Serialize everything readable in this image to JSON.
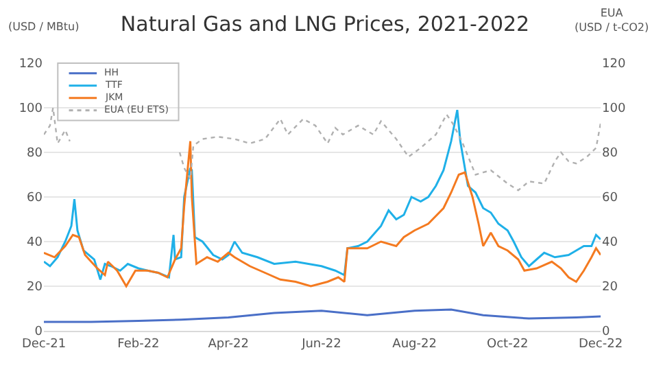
{
  "chart_data": {
    "type": "line",
    "title": "Natural Gas and LNG Prices, 2021-2022",
    "ylabel": "(USD / MBtu)",
    "y2label": "EUA\n(USD / t-CO2)",
    "xlim": [
      "2021-12-01",
      "2022-12-01"
    ],
    "xticks": [
      {
        "value": "2021-12-01",
        "label": "Dec-21"
      },
      {
        "value": "2022-02-01",
        "label": "Feb-22"
      },
      {
        "value": "2022-04-01",
        "label": "Apr-22"
      },
      {
        "value": "2022-06-01",
        "label": "Jun-22"
      },
      {
        "value": "2022-08-01",
        "label": "Aug-22"
      },
      {
        "value": "2022-10-01",
        "label": "Oct-22"
      },
      {
        "value": "2022-12-01",
        "label": "Dec-22"
      }
    ],
    "ylim": [
      0,
      120
    ],
    "yticks": [
      0,
      20,
      40,
      60,
      80,
      100,
      120
    ],
    "y2lim": [
      0,
      120
    ],
    "y2ticks": [
      0,
      20,
      40,
      60,
      80,
      100,
      120
    ],
    "grid": "y",
    "legend": "top left",
    "marker": "none",
    "series": [
      {
        "name": "HH",
        "color": "#4a6fc7",
        "line_style": "solid",
        "x": [
          "2021-12-01",
          "2022-01-01",
          "2022-02-01",
          "2022-03-01",
          "2022-04-01",
          "2022-05-01",
          "2022-06-01",
          "2022-07-01",
          "2022-08-01",
          "2022-08-25",
          "2022-09-15",
          "2022-10-15",
          "2022-11-15",
          "2022-12-01"
        ],
        "values": [
          4,
          4,
          4.5,
          5,
          6,
          8,
          9,
          7,
          9,
          9.5,
          7,
          5.5,
          6,
          6.5
        ]
      },
      {
        "name": "TTF",
        "color": "#1fb0e8",
        "line_style": "solid",
        "x": [
          "2021-12-01",
          "2021-12-05",
          "2021-12-10",
          "2021-12-15",
          "2021-12-19",
          "2021-12-21",
          "2021-12-23",
          "2021-12-27",
          "2022-01-03",
          "2022-01-07",
          "2022-01-10",
          "2022-01-14",
          "2022-01-20",
          "2022-01-25",
          "2022-02-01",
          "2022-02-07",
          "2022-02-14",
          "2022-02-21",
          "2022-02-24",
          "2022-02-25",
          "2022-03-01",
          "2022-03-03",
          "2022-03-07",
          "2022-03-08",
          "2022-03-10",
          "2022-03-15",
          "2022-03-22",
          "2022-03-28",
          "2022-04-01",
          "2022-04-05",
          "2022-04-10",
          "2022-04-20",
          "2022-05-01",
          "2022-05-15",
          "2022-06-01",
          "2022-06-10",
          "2022-06-16",
          "2022-06-18",
          "2022-06-25",
          "2022-07-01",
          "2022-07-10",
          "2022-07-15",
          "2022-07-20",
          "2022-07-25",
          "2022-07-30",
          "2022-08-05",
          "2022-08-10",
          "2022-08-15",
          "2022-08-20",
          "2022-08-25",
          "2022-08-29",
          "2022-08-31",
          "2022-09-05",
          "2022-09-10",
          "2022-09-15",
          "2022-09-20",
          "2022-09-25",
          "2022-10-01",
          "2022-10-05",
          "2022-10-10",
          "2022-10-15",
          "2022-10-20",
          "2022-10-25",
          "2022-11-01",
          "2022-11-10",
          "2022-11-15",
          "2022-11-20",
          "2022-11-25",
          "2022-11-28",
          "2022-12-01"
        ],
        "values": [
          31,
          29,
          33,
          40,
          47,
          59,
          45,
          36,
          32,
          23,
          30,
          29,
          27,
          30,
          28,
          27,
          26,
          24,
          43,
          32,
          33,
          60,
          73,
          72,
          42,
          40,
          34,
          32,
          34,
          40,
          35,
          33,
          30,
          31,
          29,
          27,
          25,
          37,
          38,
          40,
          47,
          54,
          50,
          52,
          60,
          58,
          60,
          65,
          72,
          85,
          99,
          85,
          65,
          62,
          55,
          53,
          48,
          45,
          40,
          33,
          29,
          32,
          35,
          33,
          34,
          36,
          38,
          38,
          43,
          41
        ]
      },
      {
        "name": "JKM",
        "color": "#f47a20",
        "line_style": "solid",
        "x": [
          "2021-12-01",
          "2021-12-08",
          "2021-12-15",
          "2021-12-20",
          "2021-12-24",
          "2021-12-28",
          "2022-01-05",
          "2022-01-10",
          "2022-01-12",
          "2022-01-18",
          "2022-01-24",
          "2022-01-30",
          "2022-02-07",
          "2022-02-14",
          "2022-02-20",
          "2022-02-25",
          "2022-03-01",
          "2022-03-03",
          "2022-03-07",
          "2022-03-08",
          "2022-03-11",
          "2022-03-18",
          "2022-03-25",
          "2022-04-01",
          "2022-04-05",
          "2022-04-15",
          "2022-04-25",
          "2022-05-05",
          "2022-05-15",
          "2022-05-25",
          "2022-06-05",
          "2022-06-12",
          "2022-06-16",
          "2022-06-18",
          "2022-07-01",
          "2022-07-10",
          "2022-07-20",
          "2022-07-25",
          "2022-08-01",
          "2022-08-10",
          "2022-08-20",
          "2022-08-25",
          "2022-08-30",
          "2022-09-03",
          "2022-09-08",
          "2022-09-12",
          "2022-09-15",
          "2022-09-20",
          "2022-09-25",
          "2022-10-01",
          "2022-10-08",
          "2022-10-12",
          "2022-10-20",
          "2022-10-30",
          "2022-11-05",
          "2022-11-10",
          "2022-11-15",
          "2022-11-20",
          "2022-11-25",
          "2022-11-28",
          "2022-12-01"
        ],
        "values": [
          35,
          33,
          38,
          43,
          42,
          34,
          28,
          25,
          31,
          27,
          20,
          27,
          27,
          26,
          24,
          32,
          37,
          56,
          85,
          60,
          30,
          33,
          31,
          35,
          33,
          29,
          26,
          23,
          22,
          20,
          22,
          24,
          22,
          37,
          37,
          40,
          38,
          42,
          45,
          48,
          55,
          62,
          70,
          71,
          60,
          48,
          38,
          44,
          38,
          36,
          32,
          27,
          28,
          31,
          28,
          24,
          22,
          27,
          33,
          37,
          34
        ]
      },
      {
        "name": "EUA (EU ETS)",
        "color": "#b0b0b0",
        "line_style": "dotted",
        "axis": "y2",
        "x": [
          "2021-12-01",
          "2021-12-05",
          "2021-12-07",
          "2021-12-10",
          "2021-12-15",
          "2021-12-18",
          "2022-01-15",
          "2022-02-28",
          "2022-03-03",
          "2022-03-07",
          "2022-03-09",
          "2022-03-15",
          "2022-03-25",
          "2022-04-05",
          "2022-04-15",
          "2022-04-25",
          "2022-05-05",
          "2022-05-10",
          "2022-05-20",
          "2022-05-28",
          "2022-06-05",
          "2022-06-10",
          "2022-06-15",
          "2022-06-25",
          "2022-07-05",
          "2022-07-10",
          "2022-07-20",
          "2022-07-28",
          "2022-08-05",
          "2022-08-15",
          "2022-08-22",
          "2022-08-26",
          "2022-09-01",
          "2022-09-10",
          "2022-09-20",
          "2022-10-01",
          "2022-10-08",
          "2022-10-15",
          "2022-10-25",
          "2022-11-01",
          "2022-11-05",
          "2022-11-10",
          "2022-11-15",
          "2022-11-22",
          "2022-11-28",
          "2022-12-01"
        ],
        "values": [
          88,
          92,
          100,
          84,
          90,
          85,
          null,
          80,
          73,
          68,
          83,
          86,
          87,
          86,
          84,
          86,
          95,
          88,
          95,
          92,
          84,
          91,
          88,
          92,
          88,
          94,
          86,
          78,
          82,
          88,
          97,
          93,
          85,
          70,
          72,
          66,
          63,
          67,
          66,
          76,
          80,
          76,
          75,
          78,
          82,
          93
        ]
      }
    ]
  }
}
